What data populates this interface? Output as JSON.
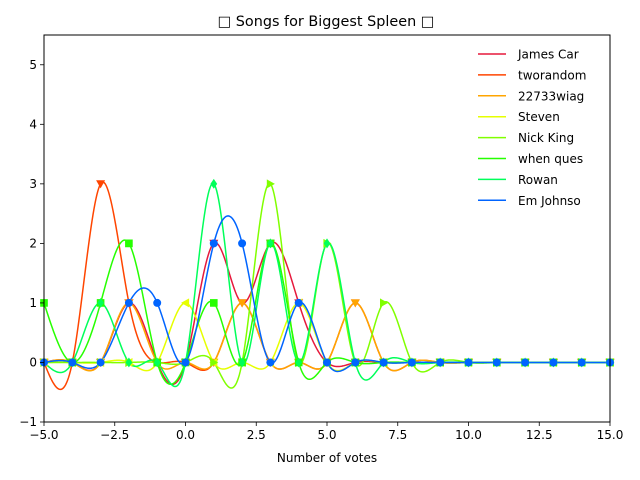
{
  "chart_data": {
    "type": "line",
    "title": "□ Songs for Biggest Spleen □",
    "xlabel": "Number of votes",
    "ylabel": "",
    "xlim": [
      -5,
      15
    ],
    "ylim": [
      -1,
      5.5
    ],
    "xticks": [
      -5,
      -2.5,
      0,
      2.5,
      5,
      7.5,
      10,
      12.5,
      15
    ],
    "xtick_labels": [
      "−5.0",
      "−2.5",
      "0.0",
      "2.5",
      "5.0",
      "7.5",
      "10.0",
      "12.5",
      "15.0"
    ],
    "yticks": [
      -1,
      0,
      1,
      2,
      3,
      4,
      5
    ],
    "ytick_labels": [
      "−1",
      "0",
      "1",
      "2",
      "3",
      "4",
      "5"
    ],
    "grid": false,
    "legend_position": "top-right",
    "x": [
      -5,
      -4,
      -3,
      -2,
      -1,
      0,
      1,
      2,
      3,
      4,
      5,
      6,
      7,
      8,
      9,
      10,
      11,
      12,
      13,
      14,
      15
    ],
    "series": [
      {
        "name": "James Car",
        "color": "#e6193c",
        "marker": "triangle-down",
        "values": [
          0,
          0,
          0,
          1,
          0,
          0,
          2,
          1,
          2,
          1,
          0,
          0,
          0,
          0,
          0,
          0,
          0,
          0,
          0,
          0,
          0
        ]
      },
      {
        "name": "tworandom",
        "color": "#ff4500",
        "marker": "triangle-down",
        "values": [
          0,
          0,
          3,
          1,
          0,
          0,
          0,
          1,
          0,
          0,
          0,
          1,
          0,
          0,
          0,
          0,
          0,
          0,
          0,
          0,
          0
        ]
      },
      {
        "name": "22733wiag",
        "color": "#ffa500",
        "marker": "triangle-down",
        "values": [
          0,
          0,
          0,
          1,
          0,
          0,
          0,
          1,
          0,
          0,
          0,
          1,
          0,
          0,
          0,
          0,
          0,
          0,
          0,
          0,
          0
        ]
      },
      {
        "name": "Steven",
        "color": "#e6ff00",
        "marker": "triangle-left",
        "values": [
          0,
          0,
          0,
          0,
          0,
          1,
          0,
          0,
          0,
          1,
          0,
          0,
          0,
          0,
          0,
          0,
          0,
          0,
          0,
          0,
          0
        ]
      },
      {
        "name": "Nick King",
        "color": "#80ff00",
        "marker": "triangle-right",
        "values": [
          0,
          0,
          0,
          0,
          0,
          0,
          0,
          0,
          3,
          0,
          2,
          0,
          1,
          0,
          0,
          0,
          0,
          0,
          0,
          0,
          0
        ]
      },
      {
        "name": "when ques",
        "color": "#26ff00",
        "marker": "square",
        "values": [
          1,
          0,
          1,
          2,
          0,
          0,
          1,
          0,
          2,
          0,
          0,
          0,
          0,
          0,
          0,
          0,
          0,
          0,
          0,
          0,
          0
        ]
      },
      {
        "name": "Rowan",
        "color": "#00ff5a",
        "marker": "diamond",
        "values": [
          0,
          0,
          1,
          0,
          0,
          0,
          3,
          0,
          2,
          0,
          2,
          0,
          0,
          0,
          0,
          0,
          0,
          0,
          0,
          0,
          0
        ]
      },
      {
        "name": "Em Johnso",
        "color": "#0064ff",
        "marker": "circle",
        "values": [
          0,
          0,
          0,
          1,
          1,
          0,
          2,
          2,
          0,
          1,
          0,
          0,
          0,
          0,
          0,
          0,
          0,
          0,
          0,
          0,
          0
        ]
      }
    ]
  }
}
